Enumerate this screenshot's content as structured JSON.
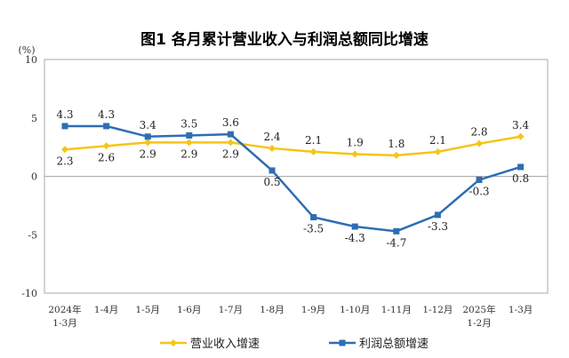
{
  "chart_data": {
    "type": "line",
    "title": "图1  各月累计营业收入与利润总额同比增速",
    "ylabel": "(%)",
    "ylim": [
      -10,
      10
    ],
    "yticks": [
      10,
      5,
      0,
      -5,
      -10
    ],
    "grid": false,
    "legend_position": "bottom",
    "categories": [
      [
        "2024年",
        "1-3月"
      ],
      [
        "1-4月"
      ],
      [
        "1-5月"
      ],
      [
        "1-6月"
      ],
      [
        "1-7月"
      ],
      [
        "1-8月"
      ],
      [
        "1-9月"
      ],
      [
        "1-10月"
      ],
      [
        "1-11月"
      ],
      [
        "1-12月"
      ],
      [
        "2025年",
        "1-2月"
      ],
      [
        "1-3月"
      ]
    ],
    "series": [
      {
        "name": "营业收入增速",
        "color": "#F5C518",
        "marker": "diamond",
        "values": [
          2.3,
          2.6,
          2.9,
          2.9,
          2.9,
          2.4,
          2.1,
          1.9,
          1.8,
          2.1,
          2.8,
          3.4
        ]
      },
      {
        "name": "利润总额增速",
        "color": "#2E6DB4",
        "marker": "square",
        "values": [
          4.3,
          4.3,
          3.4,
          3.5,
          3.6,
          0.5,
          -3.5,
          -4.3,
          -4.7,
          -3.3,
          -0.3,
          0.8
        ]
      }
    ]
  }
}
